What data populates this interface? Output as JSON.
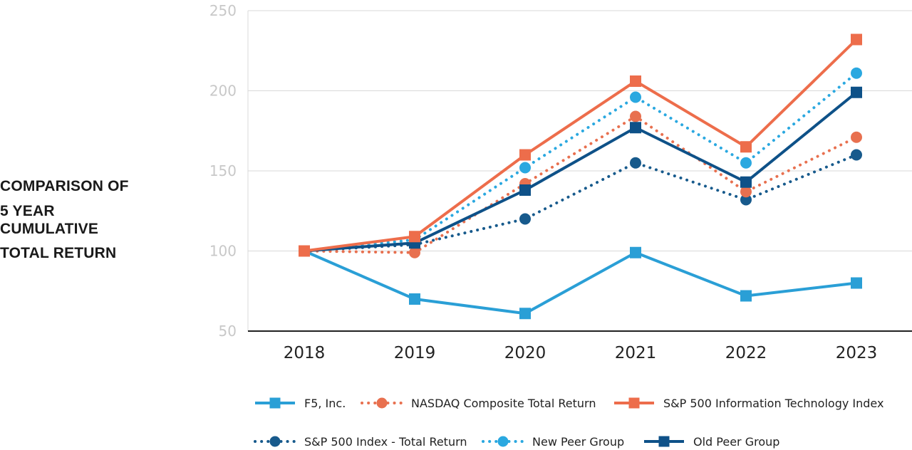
{
  "side_title": {
    "line1": "COMPARISON OF",
    "line2": "5 YEAR",
    "line3": "CUMULATIVE",
    "line4": "TOTAL RETURN"
  },
  "chart_data": {
    "type": "line",
    "title": "COMPARISON OF 5 YEAR CUMULATIVE TOTAL RETURN",
    "xlabel": "",
    "ylabel": "",
    "categories": [
      "2018",
      "2019",
      "2020",
      "2021",
      "2022",
      "2023"
    ],
    "ylim": [
      50,
      250
    ],
    "yticks": [
      50,
      100,
      150,
      200,
      250
    ],
    "grid": true,
    "legend_position": "bottom",
    "series": [
      {
        "name": "F5, Inc.",
        "color": "#2a9fd6",
        "dash": "solid",
        "marker": "square",
        "values": [
          100,
          70,
          61,
          99,
          72,
          80
        ]
      },
      {
        "name": "NASDAQ Composite Total Return",
        "color": "#e8704f",
        "dash": "dotted",
        "marker": "circle",
        "values": [
          100,
          99,
          142,
          184,
          137,
          171
        ]
      },
      {
        "name": "S&P 500 Information Technology Index",
        "color": "#ed6d4b",
        "dash": "solid",
        "marker": "square",
        "values": [
          100,
          109,
          160,
          206,
          165,
          232
        ]
      },
      {
        "name": "S&P 500 Index - Total Return",
        "color": "#175a8c",
        "dash": "dotted",
        "marker": "circle",
        "values": [
          100,
          104,
          120,
          155,
          132,
          160
        ]
      },
      {
        "name": "New Peer Group",
        "color": "#2aa8e0",
        "dash": "dotted",
        "marker": "circle",
        "values": [
          100,
          107,
          152,
          196,
          155,
          211
        ]
      },
      {
        "name": "Old Peer Group",
        "color": "#0e5188",
        "dash": "solid",
        "marker": "square",
        "values": [
          100,
          105,
          138,
          177,
          143,
          199
        ]
      }
    ]
  }
}
